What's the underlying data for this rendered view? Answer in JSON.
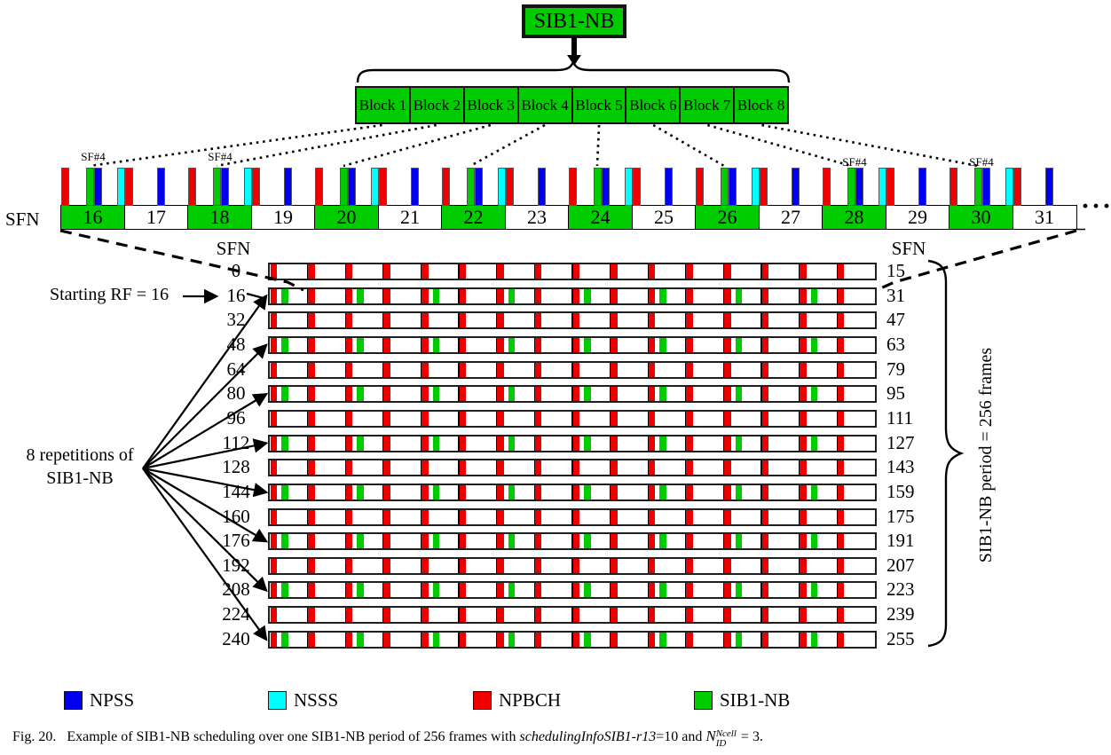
{
  "colors": {
    "npss": "#0000ee",
    "nsss": "#00ffff",
    "npbch": "#ee0000",
    "sib1_nb": "#00cc00"
  },
  "top_box": {
    "label": "SIB1-NB"
  },
  "blocks": [
    "Block 1",
    "Block 2",
    "Block 3",
    "Block 4",
    "Block 5",
    "Block 6",
    "Block 7",
    "Block 8"
  ],
  "timeline": {
    "axis_label": "SFN",
    "sf4_label": "SF#4",
    "sf4_frames": [
      16,
      18,
      28,
      30
    ],
    "ellipsis": "···",
    "frames": [
      {
        "sfn": "16",
        "sib1": true
      },
      {
        "sfn": "17",
        "sib1": false
      },
      {
        "sfn": "18",
        "sib1": true
      },
      {
        "sfn": "19",
        "sib1": false
      },
      {
        "sfn": "20",
        "sib1": true
      },
      {
        "sfn": "21",
        "sib1": false
      },
      {
        "sfn": "22",
        "sib1": true
      },
      {
        "sfn": "23",
        "sib1": false
      },
      {
        "sfn": "24",
        "sib1": true
      },
      {
        "sfn": "25",
        "sib1": false
      },
      {
        "sfn": "26",
        "sib1": true
      },
      {
        "sfn": "27",
        "sib1": false
      },
      {
        "sfn": "28",
        "sib1": true
      },
      {
        "sfn": "29",
        "sib1": false
      },
      {
        "sfn": "30",
        "sib1": true
      },
      {
        "sfn": "31",
        "sib1": false
      }
    ]
  },
  "grid": {
    "left_header": "SFN",
    "right_header": "SFN",
    "frames_per_row": 16,
    "rows": [
      {
        "left": "0",
        "right": "15",
        "sib1": false
      },
      {
        "left": "16",
        "right": "31",
        "sib1": true
      },
      {
        "left": "32",
        "right": "47",
        "sib1": false
      },
      {
        "left": "48",
        "right": "63",
        "sib1": true
      },
      {
        "left": "64",
        "right": "79",
        "sib1": false
      },
      {
        "left": "80",
        "right": "95",
        "sib1": true
      },
      {
        "left": "96",
        "right": "111",
        "sib1": false
      },
      {
        "left": "112",
        "right": "127",
        "sib1": true
      },
      {
        "left": "128",
        "right": "143",
        "sib1": false
      },
      {
        "left": "144",
        "right": "159",
        "sib1": true
      },
      {
        "left": "160",
        "right": "175",
        "sib1": false
      },
      {
        "left": "176",
        "right": "191",
        "sib1": true
      },
      {
        "left": "192",
        "right": "207",
        "sib1": false
      },
      {
        "left": "208",
        "right": "223",
        "sib1": true
      },
      {
        "left": "224",
        "right": "239",
        "sib1": false
      },
      {
        "left": "240",
        "right": "255",
        "sib1": true
      }
    ]
  },
  "annotations": {
    "starting_rf": "Starting RF = 16",
    "repetitions_line1": "8 repetitions of",
    "repetitions_line2": "SIB1-NB",
    "period": "SIB1-NB period = 256 frames"
  },
  "legend": [
    {
      "label": "NPSS",
      "color": "#0000ee"
    },
    {
      "label": "NSSS",
      "color": "#00ffff"
    },
    {
      "label": "NPBCH",
      "color": "#ee0000"
    },
    {
      "label": "SIB1-NB",
      "color": "#00cc00"
    }
  ],
  "caption": {
    "fig": "Fig. 20.",
    "text1": "Example of SIB1-NB scheduling over one SIB1-NB period of 256 frames with ",
    "italic1": "schedulingInfoSIB1-r13",
    "text2": "=10 and ",
    "math": {
      "base": "N",
      "sup": "Ncell",
      "sub": "ID"
    },
    "text3": "= 3."
  }
}
